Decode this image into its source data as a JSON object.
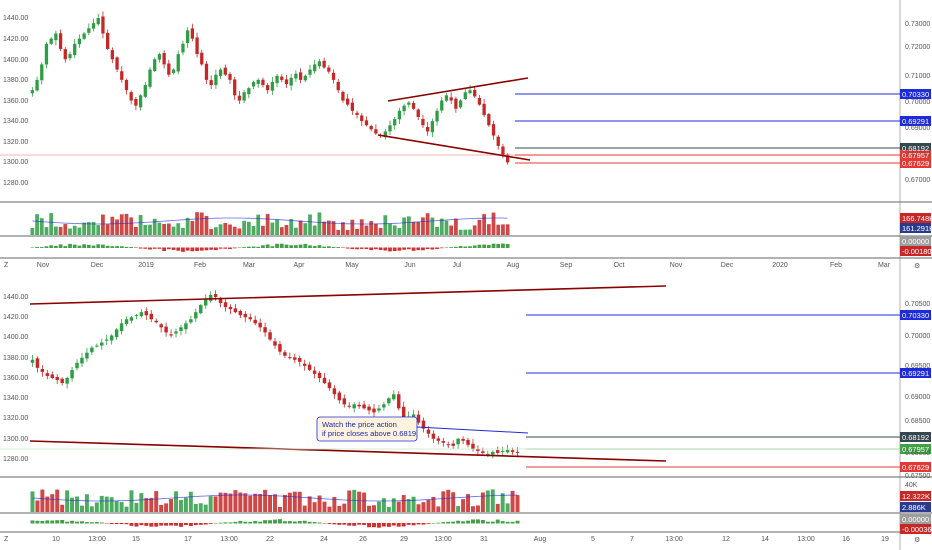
{
  "chart_data": [
    {
      "type": "candlestick",
      "title": "",
      "timeframe": "daily",
      "x_ticks": [
        "Nov",
        "Dec",
        "2019",
        "Feb",
        "Mar",
        "Apr",
        "May",
        "Jun",
        "Jul",
        "Aug",
        "Sep",
        "Oct",
        "Nov",
        "Dec",
        "2020",
        "Feb",
        "Mar"
      ],
      "left_axis_ticks": [
        "1440.00",
        "1420.00",
        "1400.00",
        "1380.00",
        "1360.00",
        "1340.00",
        "1320.00",
        "1300.00",
        "1280.00"
      ],
      "left_axis_range": [
        1268,
        1452
      ],
      "right_axis_ticks": [
        "0.73000",
        "0.72000",
        "0.71000",
        "0.70000",
        "0.69000",
        "0.68000",
        "0.67000"
      ],
      "price_tags": [
        {
          "value": "0.70330",
          "kind": "resistance",
          "color": "#1e2bd8"
        },
        {
          "value": "0.69291",
          "kind": "resistance",
          "color": "#1e2bd8"
        },
        {
          "value": "0.68192",
          "kind": "last",
          "color": "#37474f"
        },
        {
          "value": "0.67957",
          "kind": "support",
          "color": "#e53935"
        },
        {
          "value": "0.67629",
          "kind": "support",
          "color": "#e53935"
        }
      ],
      "horizontal_levels": [
        1378.4,
        1357.6,
        1335.6,
        1300.6,
        1287.7
      ],
      "pattern": {
        "name": "falling wedge",
        "upper": [
          [
            83,
            1360
          ],
          [
            138,
            1380
          ]
        ],
        "lower": [
          [
            82,
            1323
          ],
          [
            137,
            1300
          ]
        ]
      },
      "volume": {
        "tags": [
          "166.748K",
          "161.291K"
        ]
      },
      "oscillator": {
        "tags": [
          "0.00000",
          "-0.00180"
        ]
      },
      "close_path": [
        1370,
        1380,
        1395,
        1415,
        1420,
        1425,
        1410,
        1400,
        1405,
        1415,
        1420,
        1425,
        1430,
        1435,
        1440,
        1425,
        1410,
        1400,
        1390,
        1380,
        1370,
        1360,
        1355,
        1365,
        1375,
        1390,
        1400,
        1405,
        1395,
        1385,
        1390,
        1405,
        1415,
        1428,
        1420,
        1405,
        1395,
        1380,
        1375,
        1385,
        1390,
        1385,
        1380,
        1365,
        1360,
        1368,
        1372,
        1378,
        1380,
        1375,
        1370,
        1378,
        1384,
        1380,
        1376,
        1382,
        1386,
        1380,
        1384,
        1390,
        1395,
        1398,
        1392,
        1388,
        1380,
        1370,
        1360,
        1356,
        1350,
        1346,
        1340,
        1336,
        1332,
        1328,
        1326,
        1330,
        1336,
        1342,
        1350,
        1355,
        1358,
        1352,
        1344,
        1336,
        1330,
        1340,
        1350,
        1360,
        1365,
        1360,
        1352,
        1360,
        1368,
        1370,
        1364,
        1356,
        1346,
        1336,
        1326,
        1316,
        1306,
        1300
      ]
    },
    {
      "type": "candlestick",
      "title": "",
      "timeframe": "4h",
      "x_ticks": [
        "10",
        "13:00",
        "15",
        "17",
        "13:00",
        "22",
        "24",
        "26",
        "29",
        "13:00",
        "31",
        "Aug",
        "5",
        "7",
        "13:00",
        "12",
        "14",
        "13:00",
        "16",
        "19",
        "21",
        "23"
      ],
      "left_axis_ticks": [
        "1440.00",
        "1420.00",
        "1400.00",
        "1380.00",
        "1360.00",
        "1340.00",
        "1320.00",
        "1300.00",
        "1280.00"
      ],
      "left_axis_range": [
        1268,
        1452
      ],
      "right_axis_ticks": [
        "0.70500",
        "0.70000",
        "0.69500",
        "0.69000",
        "0.68500",
        "0.68000",
        "0.67500"
      ],
      "price_tags": [
        {
          "value": "0.70330",
          "kind": "resistance",
          "color": "#1e2bd8"
        },
        {
          "value": "0.69291",
          "kind": "resistance",
          "color": "#1e2bd8"
        },
        {
          "value": "0.68192",
          "kind": "resistance",
          "color": "#37474f"
        },
        {
          "value": "0.67957",
          "kind": "last",
          "color": "#43a047"
        },
        {
          "value": "0.67629",
          "kind": "support",
          "color": "#e53935"
        }
      ],
      "horizontal_levels": [
        1420.3,
        1365.1,
        1300.2,
        1287.9,
        1268.7
      ],
      "annotation": "Watch the price action\nif price closes above 0.6819.",
      "trendlines": [
        {
          "from": [
            1,
            1432
          ],
          "to": [
            130,
            1449
          ]
        },
        {
          "from": [
            1,
            1296
          ],
          "to": [
            130,
            1278
          ]
        }
      ],
      "volume": {
        "tags": [
          "12.322K",
          "2.886K"
        ],
        "top_label": "40K"
      },
      "oscillator": {
        "tags": [
          "0.00000",
          "-0.00036"
        ]
      },
      "close_path": [
        1378,
        1370,
        1366,
        1362,
        1360,
        1358,
        1355,
        1360,
        1368,
        1375,
        1380,
        1385,
        1390,
        1392,
        1395,
        1398,
        1402,
        1408,
        1414,
        1418,
        1420,
        1422,
        1425,
        1422,
        1418,
        1415,
        1410,
        1405,
        1402,
        1406,
        1410,
        1414,
        1418,
        1425,
        1432,
        1438,
        1442,
        1440,
        1434,
        1430,
        1428,
        1425,
        1422,
        1420,
        1418,
        1414,
        1410,
        1405,
        1398,
        1392,
        1386,
        1382,
        1380,
        1378,
        1376,
        1372,
        1368,
        1364,
        1360,
        1355,
        1350,
        1344,
        1338,
        1334,
        1332,
        1334,
        1332,
        1330,
        1328,
        1326,
        1330,
        1334,
        1340,
        1344,
        1330,
        1318,
        1322,
        1324,
        1316,
        1310,
        1305,
        1300,
        1298,
        1296,
        1294,
        1293,
        1300,
        1298,
        1294,
        1290,
        1288,
        1286,
        1285,
        1287,
        1286,
        1288,
        1289,
        1287,
        1286
      ]
    }
  ],
  "toolbar": {
    "z_label": "Z",
    "gear_label": "⚙"
  }
}
